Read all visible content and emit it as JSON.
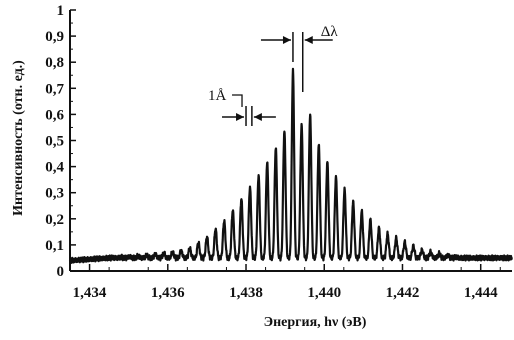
{
  "chart_data": {
    "type": "line",
    "title": "",
    "xlabel": "Энергия, hν (эВ)",
    "ylabel": "Интенсивность (отн. ед.)",
    "xlim": [
      1.4335,
      1.4448
    ],
    "ylim": [
      0,
      1.0
    ],
    "x_ticks": [
      1.434,
      1.436,
      1.438,
      1.44,
      1.442,
      1.444
    ],
    "x_tick_labels": [
      "1,434",
      "1,436",
      "1,438",
      "1,440",
      "1,442",
      "1,444"
    ],
    "y_ticks": [
      0,
      0.1,
      0.2,
      0.3,
      0.4,
      0.5,
      0.6,
      0.7,
      0.8,
      0.9,
      1.0
    ],
    "y_tick_labels": [
      "0",
      "0,1",
      "0,2",
      "0,3",
      "0,4",
      "0,5",
      "0,6",
      "0,7",
      "0,8",
      "0,9",
      "1"
    ],
    "grid": false,
    "series": [
      {
        "x": [
          1.4335,
          1.4345,
          1.4355,
          1.4365,
          1.437,
          1.4375,
          1.438,
          1.4384,
          1.4388,
          1.439,
          1.4392,
          1.4394,
          1.4396,
          1.4398,
          1.4402,
          1.4408,
          1.4415,
          1.4425,
          1.4435,
          1.4448
        ],
        "y": [
          0.04,
          0.05,
          0.06,
          0.08,
          0.13,
          0.2,
          0.3,
          0.38,
          0.48,
          0.54,
          0.77,
          0.55,
          0.62,
          0.5,
          0.38,
          0.25,
          0.15,
          0.08,
          0.05,
          0.05
        ]
      }
    ],
    "annotations": [
      {
        "text": "Δλ"
      },
      {
        "text": "1Å"
      }
    ]
  }
}
